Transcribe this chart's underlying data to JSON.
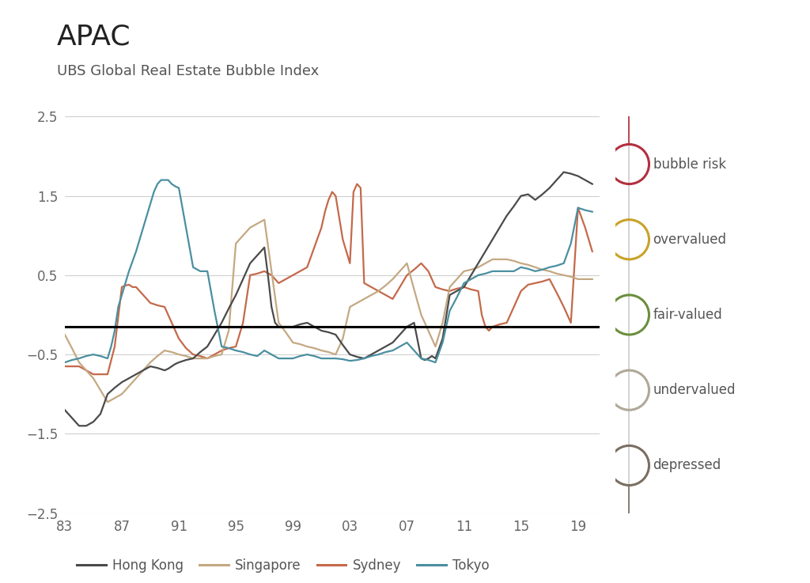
{
  "title": "APAC",
  "subtitle": "UBS Global Real Estate Bubble Index",
  "background_color": "#ffffff",
  "grid_color": "#d0d0d0",
  "hline_y": -0.15,
  "colors": {
    "hong_kong": "#4a4a4a",
    "singapore": "#c4a882",
    "sydney": "#c4694a",
    "tokyo": "#4a8fa0"
  },
  "legend_items": [
    {
      "label": "bubble risk",
      "color": "#b33040"
    },
    {
      "label": "overvalued",
      "color": "#c9a227"
    },
    {
      "label": "fair-valued",
      "color": "#6b8e3c"
    },
    {
      "label": "undervalued",
      "color": "#b0a898"
    },
    {
      "label": "depressed",
      "color": "#7a6e62"
    }
  ],
  "hong_kong": {
    "x": [
      1983,
      1983.5,
      1984,
      1984.5,
      1985,
      1985.5,
      1986,
      1986.5,
      1987,
      1987.5,
      1988,
      1988.5,
      1989,
      1989.5,
      1990,
      1990.25,
      1990.5,
      1990.75,
      1991,
      1991.5,
      1992,
      1992.5,
      1993,
      1993.5,
      1994,
      1994.5,
      1995,
      1995.5,
      1996,
      1996.5,
      1997,
      1997.25,
      1997.5,
      1997.75,
      1998,
      1998.5,
      1999,
      1999.5,
      2000,
      2000.5,
      2001,
      2001.5,
      2002,
      2002.5,
      2003,
      2003.5,
      2004,
      2004.5,
      2005,
      2005.5,
      2006,
      2006.5,
      2007,
      2007.5,
      2008,
      2008.25,
      2008.5,
      2008.75,
      2009,
      2009.5,
      2010,
      2010.5,
      2011,
      2011.5,
      2012,
      2012.5,
      2013,
      2013.5,
      2014,
      2014.5,
      2015,
      2015.5,
      2016,
      2016.5,
      2017,
      2017.5,
      2018,
      2018.5,
      2019,
      2019.5,
      2020
    ],
    "y": [
      -1.2,
      -1.3,
      -1.4,
      -1.4,
      -1.35,
      -1.25,
      -1.0,
      -0.92,
      -0.85,
      -0.8,
      -0.75,
      -0.7,
      -0.65,
      -0.67,
      -0.7,
      -0.68,
      -0.65,
      -0.62,
      -0.6,
      -0.57,
      -0.55,
      -0.47,
      -0.4,
      -0.25,
      -0.1,
      0.08,
      0.25,
      0.45,
      0.65,
      0.75,
      0.85,
      0.5,
      0.1,
      -0.1,
      -0.15,
      -0.15,
      -0.15,
      -0.12,
      -0.1,
      -0.15,
      -0.2,
      -0.22,
      -0.25,
      -0.38,
      -0.5,
      -0.53,
      -0.55,
      -0.5,
      -0.45,
      -0.4,
      -0.35,
      -0.25,
      -0.15,
      -0.1,
      -0.55,
      -0.57,
      -0.55,
      -0.52,
      -0.55,
      -0.3,
      0.25,
      0.3,
      0.35,
      0.5,
      0.65,
      0.8,
      0.95,
      1.1,
      1.25,
      1.37,
      1.5,
      1.52,
      1.45,
      1.52,
      1.6,
      1.7,
      1.8,
      1.78,
      1.75,
      1.7,
      1.65
    ]
  },
  "singapore": {
    "x": [
      1983,
      1983.5,
      1984,
      1984.5,
      1985,
      1985.5,
      1986,
      1986.5,
      1987,
      1987.5,
      1988,
      1988.5,
      1989,
      1989.5,
      1990,
      1990.5,
      1991,
      1991.5,
      1992,
      1992.5,
      1993,
      1993.5,
      1994,
      1994.5,
      1995,
      1995.5,
      1996,
      1996.5,
      1997,
      1997.5,
      1998,
      1998.5,
      1999,
      1999.5,
      2000,
      2000.5,
      2001,
      2001.5,
      2002,
      2002.5,
      2003,
      2003.5,
      2004,
      2004.5,
      2005,
      2005.5,
      2006,
      2006.5,
      2007,
      2007.5,
      2008,
      2008.5,
      2009,
      2009.5,
      2010,
      2010.5,
      2011,
      2011.5,
      2012,
      2012.5,
      2013,
      2013.5,
      2014,
      2014.5,
      2015,
      2015.5,
      2016,
      2016.5,
      2017,
      2017.5,
      2018,
      2018.5,
      2019,
      2019.5,
      2020
    ],
    "y": [
      -0.25,
      -0.42,
      -0.6,
      -0.7,
      -0.8,
      -0.95,
      -1.1,
      -1.05,
      -1.0,
      -0.9,
      -0.8,
      -0.7,
      -0.6,
      -0.52,
      -0.45,
      -0.47,
      -0.5,
      -0.52,
      -0.55,
      -0.55,
      -0.55,
      -0.52,
      -0.5,
      -0.2,
      0.9,
      1.0,
      1.1,
      1.15,
      1.2,
      0.55,
      -0.1,
      -0.22,
      -0.35,
      -0.37,
      -0.4,
      -0.42,
      -0.45,
      -0.47,
      -0.5,
      -0.3,
      0.1,
      0.15,
      0.2,
      0.25,
      0.3,
      0.37,
      0.45,
      0.55,
      0.65,
      0.32,
      0.0,
      -0.2,
      -0.4,
      -0.1,
      0.35,
      0.45,
      0.55,
      0.57,
      0.6,
      0.65,
      0.7,
      0.7,
      0.7,
      0.68,
      0.65,
      0.63,
      0.6,
      0.57,
      0.55,
      0.52,
      0.5,
      0.48,
      0.45,
      0.45,
      0.45
    ]
  },
  "sydney": {
    "x": [
      1983,
      1983.5,
      1984,
      1984.5,
      1985,
      1985.5,
      1986,
      1986.5,
      1987,
      1987.25,
      1987.5,
      1987.75,
      1988,
      1988.5,
      1989,
      1989.5,
      1990,
      1990.5,
      1991,
      1991.5,
      1992,
      1992.5,
      1993,
      1993.5,
      1994,
      1994.5,
      1995,
      1995.5,
      1996,
      1996.5,
      1997,
      1997.5,
      1998,
      1998.5,
      1999,
      1999.5,
      2000,
      2000.5,
      2001,
      2001.25,
      2001.5,
      2001.75,
      2002,
      2002.5,
      2003,
      2003.25,
      2003.5,
      2003.75,
      2004,
      2004.5,
      2005,
      2005.5,
      2006,
      2006.5,
      2007,
      2007.5,
      2008,
      2008.5,
      2009,
      2009.5,
      2010,
      2010.5,
      2011,
      2011.5,
      2012,
      2012.25,
      2012.5,
      2012.75,
      2013,
      2013.5,
      2014,
      2014.5,
      2015,
      2015.5,
      2016,
      2016.5,
      2017,
      2017.5,
      2018,
      2018.5,
      2019,
      2019.5,
      2020
    ],
    "y": [
      -0.65,
      -0.65,
      -0.65,
      -0.7,
      -0.75,
      -0.75,
      -0.75,
      -0.4,
      0.35,
      0.37,
      0.38,
      0.35,
      0.35,
      0.25,
      0.15,
      0.12,
      0.1,
      -0.1,
      -0.3,
      -0.42,
      -0.5,
      -0.52,
      -0.55,
      -0.5,
      -0.45,
      -0.42,
      -0.4,
      -0.1,
      0.5,
      0.52,
      0.55,
      0.5,
      0.4,
      0.45,
      0.5,
      0.55,
      0.6,
      0.85,
      1.1,
      1.3,
      1.45,
      1.55,
      1.5,
      0.95,
      0.65,
      1.55,
      1.65,
      1.6,
      0.4,
      0.35,
      0.3,
      0.25,
      0.2,
      0.35,
      0.5,
      0.57,
      0.65,
      0.55,
      0.35,
      0.32,
      0.3,
      0.33,
      0.35,
      0.32,
      0.3,
      -0.0,
      -0.15,
      -0.2,
      -0.15,
      -0.12,
      -0.1,
      0.1,
      0.3,
      0.38,
      0.4,
      0.42,
      0.45,
      0.28,
      0.1,
      -0.1,
      1.35,
      1.1,
      0.8
    ]
  },
  "tokyo": {
    "x": [
      1983,
      1983.5,
      1984,
      1984.5,
      1985,
      1985.5,
      1986,
      1986.25,
      1986.5,
      1986.75,
      1987,
      1987.5,
      1988,
      1988.5,
      1989,
      1989.25,
      1989.5,
      1989.75,
      1990,
      1990.25,
      1990.5,
      1990.75,
      1991,
      1991.5,
      1992,
      1992.5,
      1993,
      1993.5,
      1994,
      1994.5,
      1995,
      1995.5,
      1996,
      1996.5,
      1997,
      1997.5,
      1998,
      1998.5,
      1999,
      1999.5,
      2000,
      2000.5,
      2001,
      2001.5,
      2002,
      2002.5,
      2003,
      2003.5,
      2004,
      2004.5,
      2005,
      2005.5,
      2006,
      2006.5,
      2007,
      2007.5,
      2008,
      2008.5,
      2009,
      2009.5,
      2010,
      2010.5,
      2011,
      2011.5,
      2012,
      2012.5,
      2013,
      2013.5,
      2014,
      2014.5,
      2015,
      2015.5,
      2016,
      2016.5,
      2017,
      2017.5,
      2018,
      2018.5,
      2019,
      2019.5,
      2020
    ],
    "y": [
      -0.6,
      -0.57,
      -0.55,
      -0.52,
      -0.5,
      -0.52,
      -0.55,
      -0.4,
      -0.2,
      0.1,
      0.25,
      0.55,
      0.8,
      1.1,
      1.4,
      1.55,
      1.65,
      1.7,
      1.7,
      1.7,
      1.65,
      1.62,
      1.6,
      1.1,
      0.6,
      0.55,
      0.55,
      0.05,
      -0.4,
      -0.42,
      -0.45,
      -0.47,
      -0.5,
      -0.52,
      -0.45,
      -0.5,
      -0.55,
      -0.55,
      -0.55,
      -0.52,
      -0.5,
      -0.52,
      -0.55,
      -0.55,
      -0.55,
      -0.56,
      -0.58,
      -0.57,
      -0.55,
      -0.52,
      -0.5,
      -0.47,
      -0.45,
      -0.4,
      -0.35,
      -0.45,
      -0.55,
      -0.57,
      -0.6,
      -0.35,
      0.05,
      0.22,
      0.4,
      0.45,
      0.5,
      0.52,
      0.55,
      0.55,
      0.55,
      0.55,
      0.6,
      0.58,
      0.55,
      0.57,
      0.6,
      0.62,
      0.65,
      0.9,
      1.35,
      1.32,
      1.3
    ]
  }
}
